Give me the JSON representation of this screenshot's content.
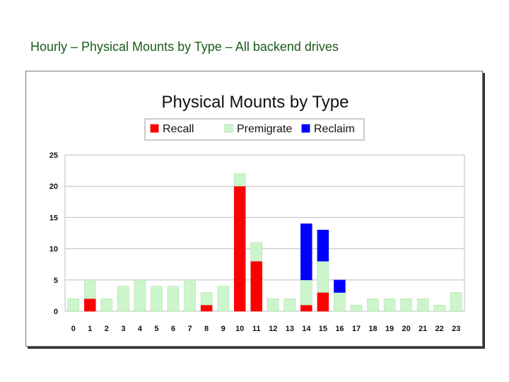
{
  "slide": {
    "title": "Hourly – Physical Mounts by Type – All backend drives"
  },
  "colors": {
    "recall": "#ff0000",
    "premigrate": "#ccf5cc",
    "reclaim": "#0000ff",
    "gridline": "#bdbdbd"
  },
  "chart_data": {
    "type": "bar",
    "stacked": true,
    "title": "Physical Mounts by Type",
    "xlabel": "",
    "ylabel": "",
    "ylim": [
      0,
      25
    ],
    "yticks": [
      0,
      5,
      10,
      15,
      20,
      25
    ],
    "grid": true,
    "legend_position": "top",
    "categories": [
      "0",
      "1",
      "2",
      "3",
      "4",
      "5",
      "6",
      "7",
      "8",
      "9",
      "10",
      "11",
      "12",
      "13",
      "14",
      "15",
      "16",
      "17",
      "18",
      "19",
      "20",
      "21",
      "22",
      "23"
    ],
    "series": [
      {
        "name": "Recall",
        "color": "#ff0000",
        "values": [
          0,
          2,
          0,
          0,
          0,
          0,
          0,
          0,
          1,
          0,
          20,
          8,
          0,
          0,
          1,
          3,
          0,
          0,
          0,
          0,
          0,
          0,
          0,
          0
        ]
      },
      {
        "name": "Premigrate",
        "color": "#ccf5cc",
        "values": [
          2,
          3,
          2,
          4,
          5,
          4,
          4,
          5,
          2,
          4,
          2,
          3,
          2,
          2,
          4,
          5,
          3,
          1,
          2,
          2,
          2,
          2,
          1,
          3
        ]
      },
      {
        "name": "Reclaim",
        "color": "#0000ff",
        "values": [
          0,
          0,
          0,
          0,
          0,
          0,
          0,
          0,
          0,
          0,
          0,
          0,
          0,
          0,
          9,
          5,
          2,
          0,
          0,
          0,
          0,
          0,
          0,
          0
        ]
      }
    ]
  }
}
